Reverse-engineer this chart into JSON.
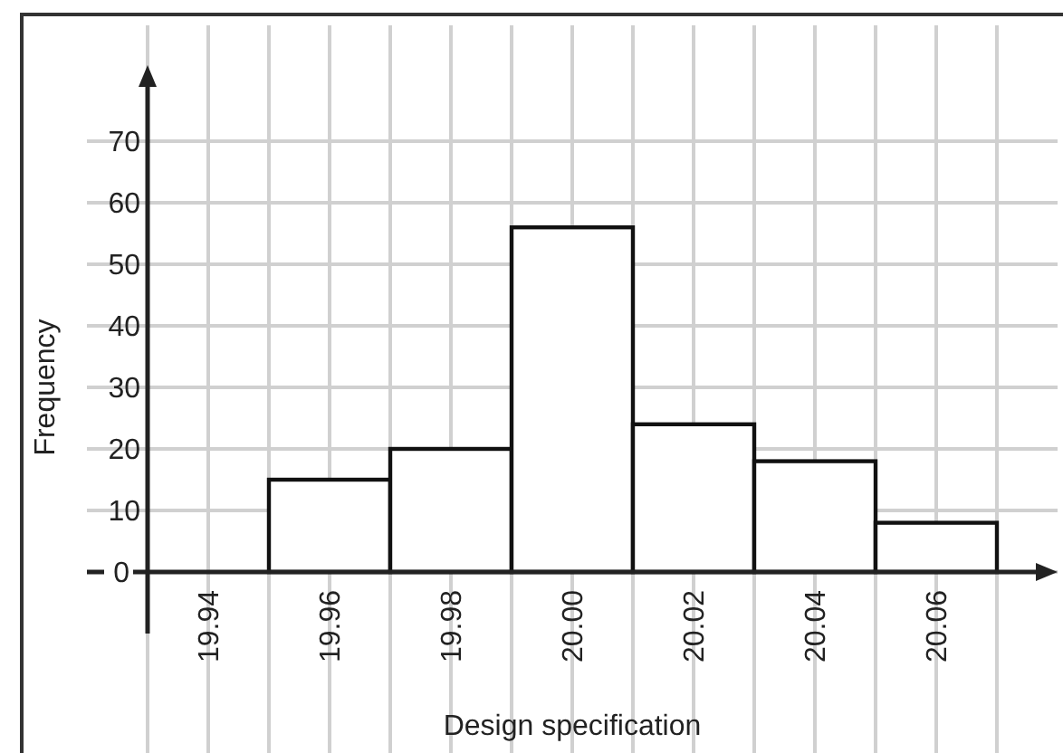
{
  "chart_data": {
    "type": "histogram",
    "xlabel": "Design specification",
    "ylabel": "Frequency",
    "bins": [
      19.95,
      19.97,
      19.99,
      20.01,
      20.03,
      20.05,
      20.07
    ],
    "values": [
      15,
      20,
      56,
      24,
      18,
      8
    ],
    "color": "#ffffff",
    "xlim": [
      19.92,
      20.08
    ],
    "xticks": [
      {
        "value": 19.93,
        "label": null
      },
      {
        "value": 19.94,
        "label": "19.94"
      },
      {
        "value": 19.95,
        "label": null
      },
      {
        "value": 19.96,
        "label": "19.96"
      },
      {
        "value": 19.97,
        "label": null
      },
      {
        "value": 19.98,
        "label": "19.98"
      },
      {
        "value": 19.99,
        "label": null
      },
      {
        "value": 20.0,
        "label": "20.00"
      },
      {
        "value": 20.01,
        "label": null
      },
      {
        "value": 20.02,
        "label": "20.02"
      },
      {
        "value": 20.03,
        "label": null
      },
      {
        "value": 20.04,
        "label": "20.04"
      },
      {
        "value": 20.05,
        "label": null
      },
      {
        "value": 20.06,
        "label": "20.06"
      },
      {
        "value": 20.07,
        "label": null
      }
    ],
    "ylim": [
      -10,
      80
    ],
    "yticks": [
      0,
      10,
      20,
      30,
      40,
      50,
      60,
      70
    ],
    "grid": true
  }
}
